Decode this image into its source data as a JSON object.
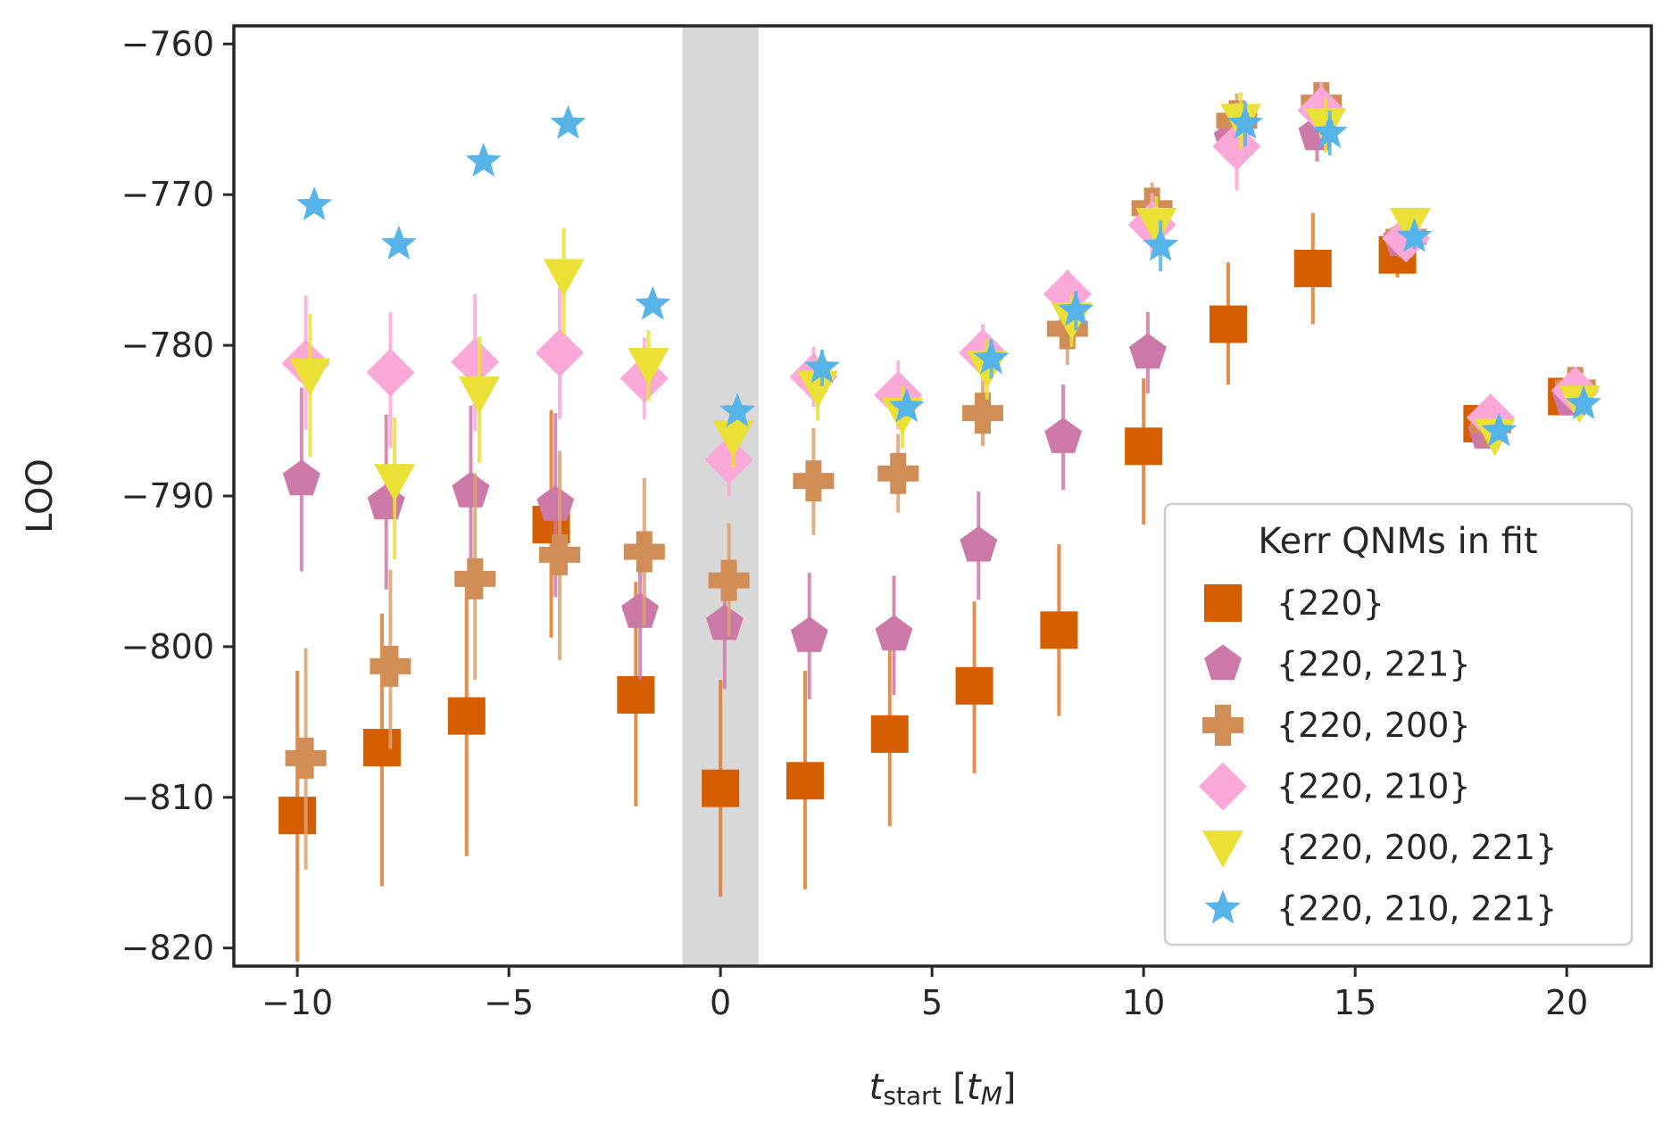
{
  "chart_data": {
    "type": "scatter",
    "title": "",
    "xlabel": "t_start [t_M]",
    "xlabel_parts": {
      "var": "t",
      "sub": "start",
      "unit_var": "t",
      "unit_sub": "M"
    },
    "ylabel": "LOO",
    "xlim": [
      -11.5,
      22
    ],
    "ylim": [
      -821.2,
      -758.8
    ],
    "xticks": [
      -10,
      -5,
      0,
      5,
      10,
      15,
      20
    ],
    "xtick_labels": [
      "−10",
      "−5",
      "0",
      "5",
      "10",
      "15",
      "20"
    ],
    "yticks": [
      -820,
      -810,
      -800,
      -790,
      -780,
      -770,
      -760
    ],
    "ytick_labels": [
      "−820",
      "−810",
      "−800",
      "−790",
      "−780",
      "−770",
      "−760"
    ],
    "shaded_band": {
      "x0": -0.9,
      "x1": 0.9,
      "color": "#d8d8d8"
    },
    "legend": {
      "title": "Kerr QNMs in fit",
      "location": "lower-right"
    },
    "x": [
      -10,
      -8,
      -6,
      -4,
      -2,
      0,
      2,
      4,
      6,
      8,
      10,
      12,
      14,
      16,
      18,
      20
    ],
    "series": [
      {
        "name": "{220}",
        "marker": "square",
        "color": "#d55e00",
        "errcolor": "#e07a2a",
        "x_offset": 0.0,
        "values": [
          -811.2,
          -806.7,
          -804.6,
          -791.9,
          -803.2,
          -809.4,
          -808.9,
          -805.8,
          -802.6,
          -798.9,
          -786.7,
          -778.6,
          -774.9,
          -774.0,
          -785.2,
          -783.4
        ],
        "err_lo": [
          -820.9,
          -815.9,
          -813.9,
          -799.4,
          -810.6,
          -816.6,
          -816.1,
          -811.9,
          -808.4,
          -804.6,
          -791.9,
          -782.6,
          -778.6,
          -775.5,
          -786.2,
          -784.4
        ],
        "err_hi": [
          -801.6,
          -797.8,
          -795.4,
          -784.3,
          -795.7,
          -802.2,
          -801.6,
          -799.8,
          -797.0,
          -793.2,
          -782.2,
          -774.5,
          -771.2,
          -772.8,
          -784.2,
          -782.4
        ]
      },
      {
        "name": "{220, 221}",
        "marker": "pentagon",
        "color": "#cc79a7",
        "errcolor": "#cc79a7",
        "x_offset": 0.1,
        "values": [
          -788.9,
          -790.5,
          -789.7,
          -790.6,
          -797.7,
          -798.5,
          -799.3,
          -799.2,
          -793.3,
          -786.1,
          -780.5,
          -766.3,
          -766.0,
          -773.0,
          -785.8,
          -783.6
        ],
        "err_lo": [
          -795.0,
          -796.2,
          -795.4,
          -796.7,
          -802.2,
          -802.8,
          -803.5,
          -803.2,
          -796.9,
          -789.6,
          -783.2,
          -768.0,
          -767.8,
          -774.0,
          -786.8,
          -784.6
        ],
        "err_hi": [
          -782.8,
          -784.6,
          -784.0,
          -784.5,
          -793.2,
          -794.3,
          -795.1,
          -795.3,
          -789.7,
          -782.6,
          -777.8,
          -764.6,
          -764.2,
          -772.0,
          -784.8,
          -782.6
        ]
      },
      {
        "name": "{220, 200}",
        "marker": "plus",
        "color": "#d08d55",
        "errcolor": "#d9a172",
        "x_offset": 0.2,
        "values": [
          -807.4,
          -801.3,
          -795.5,
          -793.9,
          -793.7,
          -795.6,
          -789.0,
          -788.5,
          -784.5,
          -778.9,
          -770.9,
          -765.1,
          -763.9,
          -772.8,
          -785.3,
          -782.8
        ],
        "err_lo": [
          -814.8,
          -806.8,
          -802.2,
          -800.9,
          -798.6,
          -799.3,
          -792.6,
          -791.1,
          -786.7,
          -781.3,
          -772.6,
          -766.7,
          -765.3,
          -773.8,
          -786.3,
          -783.8
        ],
        "err_hi": [
          -800.1,
          -794.9,
          -788.5,
          -787.0,
          -788.8,
          -791.8,
          -785.5,
          -785.9,
          -782.3,
          -776.6,
          -769.2,
          -763.3,
          -762.5,
          -771.8,
          -784.3,
          -781.8
        ]
      },
      {
        "name": "{220, 210}",
        "marker": "diamond",
        "color": "#f9a8d8",
        "errcolor": "#f9a8d8",
        "x_offset": 0.2,
        "values": [
          -781.2,
          -781.8,
          -781.1,
          -780.5,
          -782.2,
          -787.6,
          -782.1,
          -783.3,
          -780.5,
          -776.6,
          -772.0,
          -766.8,
          -764.4,
          -772.9,
          -784.8,
          -783.0
        ],
        "err_lo": [
          -785.6,
          -786.8,
          -785.7,
          -784.9,
          -784.9,
          -790.0,
          -784.1,
          -785.6,
          -782.4,
          -778.2,
          -774.1,
          -769.7,
          -766.3,
          -773.9,
          -785.8,
          -784.0
        ],
        "err_hi": [
          -776.7,
          -777.8,
          -776.6,
          -776.2,
          -779.5,
          -785.2,
          -780.1,
          -781.0,
          -778.6,
          -775.0,
          -769.9,
          -763.9,
          -762.5,
          -771.9,
          -783.8,
          -782.0
        ]
      },
      {
        "name": "{220, 200, 221}",
        "marker": "triangle-down",
        "color": "#eae036",
        "errcolor": "#eae036",
        "x_offset": 0.3,
        "values": [
          -782.0,
          -789.0,
          -783.2,
          -775.4,
          -781.3,
          -786.1,
          -782.8,
          -784.6,
          -781.5,
          -778.3,
          -772.0,
          -765.1,
          -765.4,
          -772.0,
          -786.0,
          -783.8
        ],
        "err_lo": [
          -787.4,
          -794.2,
          -787.8,
          -779.3,
          -783.7,
          -788.1,
          -785.0,
          -786.8,
          -783.6,
          -780.1,
          -774.0,
          -767.0,
          -767.2,
          -773.0,
          -787.0,
          -784.8
        ],
        "err_hi": [
          -777.9,
          -784.8,
          -779.4,
          -772.2,
          -779.0,
          -784.3,
          -780.9,
          -782.7,
          -779.6,
          -776.6,
          -770.1,
          -763.2,
          -763.6,
          -771.0,
          -785.0,
          -782.8
        ]
      },
      {
        "name": "{220, 210, 221}",
        "marker": "star",
        "color": "#56b4e9",
        "errcolor": "#56b4e9",
        "x_offset": 0.4,
        "values": [
          -770.7,
          -773.3,
          -767.8,
          -765.3,
          -777.3,
          -784.4,
          -781.5,
          -784.1,
          -780.9,
          -777.7,
          -773.4,
          -765.3,
          -765.9,
          -772.8,
          -785.7,
          -783.9
        ],
        "err_lo": [
          -770.7,
          -773.3,
          -767.8,
          -765.3,
          -777.3,
          -784.4,
          -782.7,
          -784.7,
          -782.2,
          -779.0,
          -775.1,
          -766.8,
          -767.4,
          -773.6,
          -786.3,
          -784.6
        ],
        "err_hi": [
          -770.7,
          -773.3,
          -767.8,
          -765.3,
          -777.3,
          -784.4,
          -780.3,
          -783.5,
          -779.6,
          -776.4,
          -771.7,
          -763.8,
          -764.4,
          -772.0,
          -785.1,
          -783.2
        ]
      }
    ]
  }
}
